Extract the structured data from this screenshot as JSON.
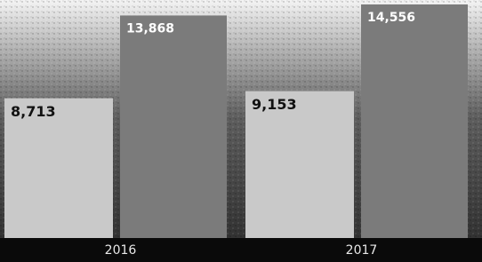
{
  "chart_data": {
    "type": "bar",
    "categories": [
      "2016",
      "2017"
    ],
    "series": [
      {
        "color": "#c9c9c9",
        "values": [
          8713,
          9153
        ],
        "value_labels": [
          "8,713",
          "9,153"
        ]
      },
      {
        "color": "#7b7b7b",
        "values": [
          13868,
          14556
        ],
        "value_labels": [
          "13,868",
          "14,556"
        ]
      }
    ]
  }
}
